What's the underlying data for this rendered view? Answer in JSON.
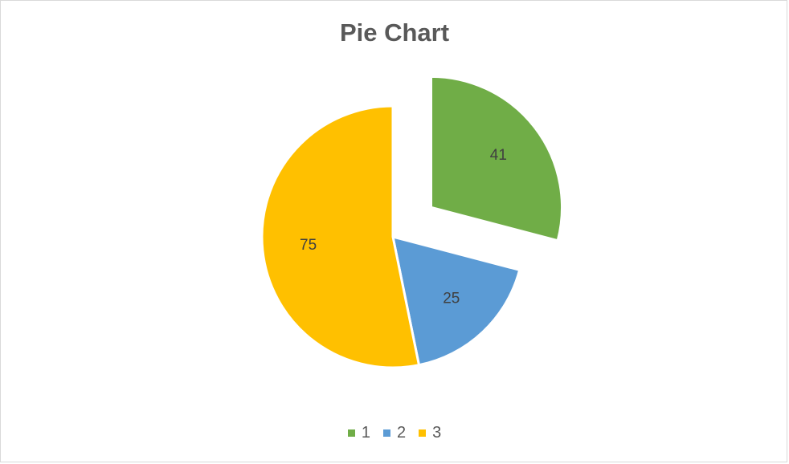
{
  "chart_data": {
    "type": "pie",
    "title": "Pie Chart",
    "categories": [
      "1",
      "2",
      "3"
    ],
    "values": [
      41,
      25,
      75
    ],
    "colors": [
      "#70ad47",
      "#5b9bd5",
      "#ffc000"
    ],
    "exploded_slice": "1",
    "data_labels": true,
    "legend": "bottom"
  }
}
